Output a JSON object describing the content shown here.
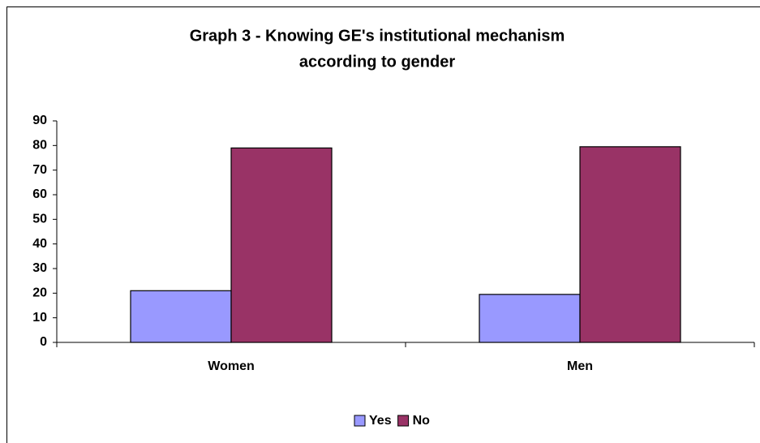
{
  "chart_data": {
    "type": "bar",
    "title": [
      "Graph 3 - Knowing GE's institutional mechanism",
      "according to gender"
    ],
    "categories": [
      "Women",
      "Men"
    ],
    "series": [
      {
        "name": "Yes",
        "color": "#9999ff",
        "values": [
          21,
          19.5
        ]
      },
      {
        "name": "No",
        "color": "#993366",
        "values": [
          79,
          79.5
        ]
      }
    ],
    "ylim": [
      0,
      90
    ],
    "yticks": [
      0,
      10,
      20,
      30,
      40,
      50,
      60,
      70,
      80,
      90
    ],
    "grid": false,
    "legend": "bottom"
  }
}
